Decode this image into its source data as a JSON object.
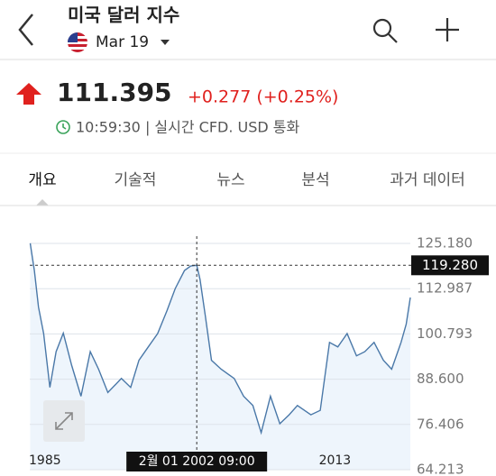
{
  "header": {
    "title": "미국 달러 지수",
    "contract": "Mar 19"
  },
  "quote": {
    "price": "111.395",
    "change": "+0.277 (+0.25%)",
    "status": "10:59:30 | 실시간 CFD. USD 통화"
  },
  "tabs": [
    "개요",
    "기술적",
    "뉴스",
    "분석",
    "과거 데이터"
  ],
  "chart_data": {
    "type": "line",
    "color": "#4a78a8",
    "fill": "#eef5fc",
    "grid": true,
    "x": [
      1986.0,
      1986.4,
      1986.8,
      1987.3,
      1987.9,
      1988.5,
      1989.2,
      1990.0,
      1990.9,
      1991.8,
      1992.6,
      1993.5,
      1994.8,
      1995.7,
      1996.5,
      1997.4,
      1998.3,
      1999.2,
      2000.0,
      2000.9,
      2001.5,
      2002.08,
      2002.4,
      2002.9,
      2003.5,
      2004.43,
      2005.7,
      2006.6,
      2007.5,
      2008.3,
      2009.2,
      2010.1,
      2011.0,
      2011.8,
      2013.1,
      2014.0,
      2014.9,
      2015.7,
      2016.6,
      2017.5,
      2018.3,
      2019.2,
      2020.1,
      2020.9,
      2021.8,
      2022.3,
      2022.7
    ],
    "values": [
      125.2,
      117.9,
      108,
      100.9,
      86.4,
      96,
      101,
      92.4,
      84,
      96,
      91.3,
      85,
      88.8,
      86.4,
      93.7,
      97.3,
      100.9,
      107,
      113,
      117.9,
      119.1,
      119.28,
      115.5,
      105.8,
      93.7,
      91.3,
      88.8,
      84,
      81.5,
      74.2,
      84,
      76.6,
      79,
      81.5,
      79,
      80.2,
      98.5,
      97.3,
      100.9,
      94.9,
      96,
      98.5,
      93.7,
      91.3,
      98.5,
      103.4,
      110.6
    ],
    "xlim": [
      1985,
      2022.7
    ],
    "xticks": [
      1985,
      2013
    ],
    "ylim": [
      64.213,
      125.18
    ],
    "yticks": [
      {
        "value": 125.18,
        "label": "125.180"
      },
      112.987,
      100.793,
      {
        "value": 88.6,
        "label": "88.600"
      },
      76.406,
      64.213
    ],
    "crosshair": {
      "x": 2002.08,
      "x_label": "2월 01 2002 09:00",
      "y": 119.28,
      "y_label": "119.280"
    }
  }
}
